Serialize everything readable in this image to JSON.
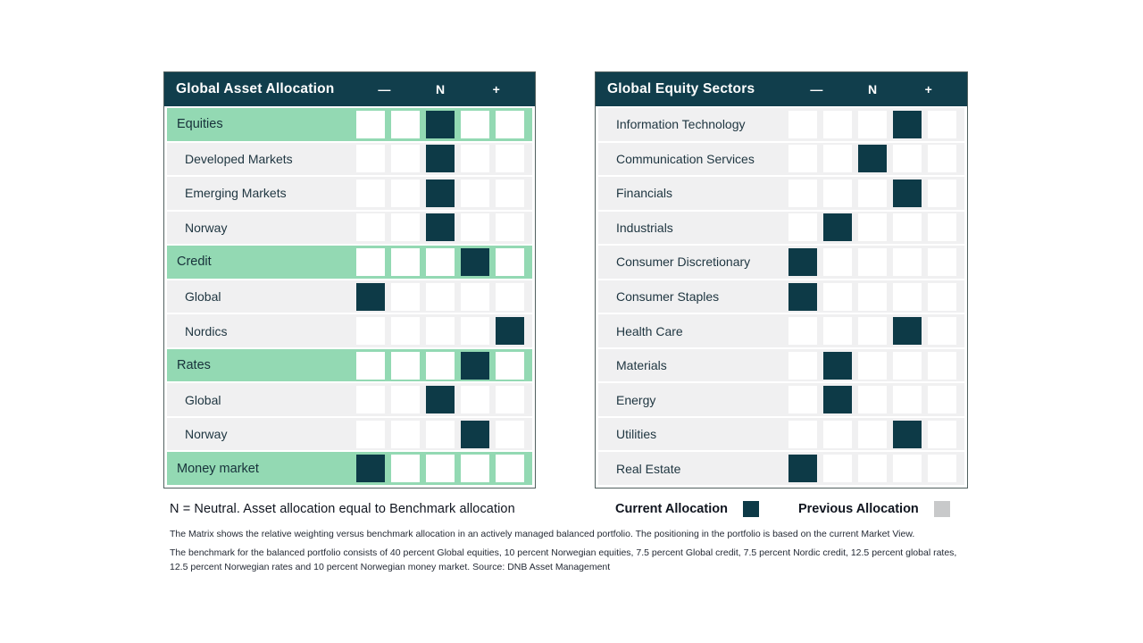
{
  "colors": {
    "header_bg": "#113e4c",
    "filled_box": "#0d3a47",
    "group_row_bg": "#93d9b3",
    "row_bg": "#f0f0f1",
    "empty_box": "#ffffff",
    "previous_swatch": "#c8c9ca",
    "table_border": "#51605f"
  },
  "tables": [
    {
      "title": "Global Asset Allocation",
      "col_labels": [
        "—",
        "N",
        "+"
      ],
      "rows": [
        {
          "label": "Equities",
          "group": true,
          "value": 3
        },
        {
          "label": "Developed Markets",
          "group": false,
          "value": 3
        },
        {
          "label": "Emerging Markets",
          "group": false,
          "value": 3
        },
        {
          "label": "Norway",
          "group": false,
          "value": 3
        },
        {
          "label": "Credit",
          "group": true,
          "value": 4
        },
        {
          "label": "Global",
          "group": false,
          "value": 1
        },
        {
          "label": "Nordics",
          "group": false,
          "value": 5
        },
        {
          "label": "Rates",
          "group": true,
          "value": 4
        },
        {
          "label": "Global",
          "group": false,
          "value": 3
        },
        {
          "label": "Norway",
          "group": false,
          "value": 4
        },
        {
          "label": "Money market",
          "group": true,
          "value": 1
        }
      ]
    },
    {
      "title": "Global Equity Sectors",
      "col_labels": [
        "—",
        "N",
        "+"
      ],
      "rows": [
        {
          "label": "Information Technology",
          "group": false,
          "value": 4
        },
        {
          "label": "Communication Services",
          "group": false,
          "value": 3
        },
        {
          "label": "Financials",
          "group": false,
          "value": 4
        },
        {
          "label": "Industrials",
          "group": false,
          "value": 2
        },
        {
          "label": "Consumer Discretionary",
          "group": false,
          "value": 1
        },
        {
          "label": "Consumer Staples",
          "group": false,
          "value": 1
        },
        {
          "label": "Health Care",
          "group": false,
          "value": 4
        },
        {
          "label": "Materials",
          "group": false,
          "value": 2
        },
        {
          "label": "Energy",
          "group": false,
          "value": 2
        },
        {
          "label": "Utilities",
          "group": false,
          "value": 4
        },
        {
          "label": "Real Estate",
          "group": false,
          "value": 1
        }
      ]
    }
  ],
  "legend": {
    "current_label": "Current Allocation",
    "previous_label": "Previous Allocation"
  },
  "footnote": "N = Neutral. Asset allocation equal to Benchmark allocation",
  "smallprint": [
    "The Matrix shows the relative weighting versus benchmark allocation in an actively managed balanced portfolio. The positioning in the portfolio is based on the current Market View.",
    "The benchmark for the balanced portfolio consists of 40 percent Global equities, 10 percent Norwegian equities, 7.5 percent Global credit, 7.5 percent Nordic credit, 12.5 percent global rates, 12.5 percent Norwegian rates and 10 percent Norwegian money market. Source: DNB Asset Management"
  ],
  "chart_data": [
    {
      "type": "heatmap",
      "title": "Global Asset Allocation",
      "categories": [
        "Equities",
        "Developed Markets",
        "Emerging Markets",
        "Norway",
        "Credit",
        "Global",
        "Nordics",
        "Rates",
        "Global",
        "Norway",
        "Money market"
      ],
      "values": [
        3,
        3,
        3,
        3,
        4,
        1,
        5,
        4,
        3,
        4,
        1
      ],
      "group_rows": [
        "Equities",
        "Credit",
        "Rates",
        "Money market"
      ],
      "scale": {
        "positions": 5,
        "visible_tick_labels": [
          "—",
          "N",
          "+"
        ],
        "meaning": "1=max underweight, 3=Neutral, 5=max overweight"
      },
      "legend": [
        "Current Allocation",
        "Previous Allocation"
      ],
      "legend_position": "bottom"
    },
    {
      "type": "heatmap",
      "title": "Global Equity Sectors",
      "categories": [
        "Information Technology",
        "Communication Services",
        "Financials",
        "Industrials",
        "Consumer Discretionary",
        "Consumer Staples",
        "Health Care",
        "Materials",
        "Energy",
        "Utilities",
        "Real Estate"
      ],
      "values": [
        4,
        3,
        4,
        2,
        1,
        1,
        4,
        2,
        2,
        4,
        1
      ],
      "group_rows": [],
      "scale": {
        "positions": 5,
        "visible_tick_labels": [
          "—",
          "N",
          "+"
        ],
        "meaning": "1=max underweight, 3=Neutral, 5=max overweight"
      },
      "legend": [
        "Current Allocation",
        "Previous Allocation"
      ],
      "legend_position": "bottom"
    }
  ]
}
